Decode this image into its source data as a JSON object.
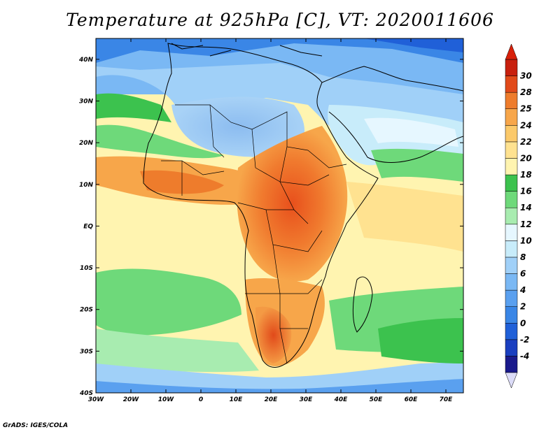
{
  "title": "Temperature at 925hPa [C], VT: 2020011606",
  "footer": "GrADS: IGES/COLA",
  "map": {
    "lon_range": [
      -30,
      75
    ],
    "lat_range": [
      -40,
      45
    ],
    "lon_ticks": [
      "30W",
      "20W",
      "10W",
      "0",
      "10E",
      "20E",
      "30E",
      "40E",
      "50E",
      "60E",
      "70E"
    ],
    "lat_ticks": [
      "40S",
      "30S",
      "20S",
      "10S",
      "EQ",
      "10N",
      "20N",
      "30N",
      "40N"
    ]
  },
  "colorbar": {
    "labels": [
      "-4",
      "-2",
      "0",
      "2",
      "4",
      "6",
      "8",
      "10",
      "12",
      "14",
      "16",
      "18",
      "20",
      "22",
      "24",
      "25",
      "28",
      "30"
    ],
    "colors": [
      "#1a1a8c",
      "#1a3fc0",
      "#2060d8",
      "#3a86e6",
      "#5aa0ef",
      "#7ab8f4",
      "#a0d0f8",
      "#c8ecfa",
      "#e6f7ff",
      "#a8ecb0",
      "#6ed97a",
      "#3cc24e",
      "#fff4b0",
      "#ffe290",
      "#fbc96a",
      "#f7a64a",
      "#ee7c2c",
      "#e14a1a",
      "#c8200e"
    ],
    "low_arrow_color": "#dcdcf8",
    "high_arrow_color": "#d8200a"
  }
}
